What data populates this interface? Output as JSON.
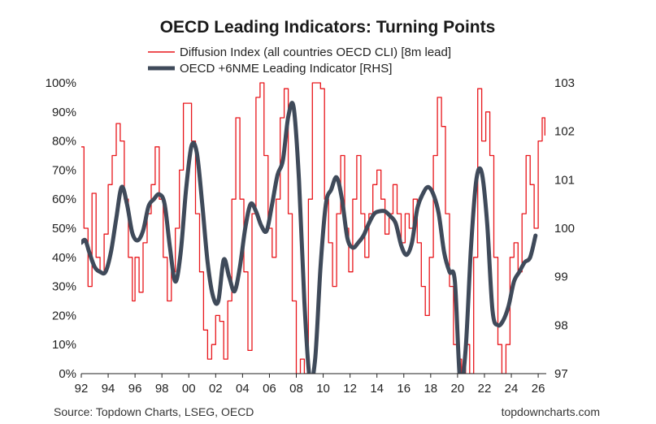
{
  "chart_data": {
    "type": "line",
    "title": "OECD Leading Indicators: Turning Points",
    "xlabel": "",
    "ylabel_left": "",
    "ylabel_right": "",
    "x_ticks": [
      "92",
      "94",
      "96",
      "98",
      "00",
      "02",
      "04",
      "06",
      "08",
      "10",
      "12",
      "14",
      "16",
      "18",
      "20",
      "22",
      "24",
      "26"
    ],
    "y_left_ticks": [
      "0%",
      "10%",
      "20%",
      "30%",
      "40%",
      "50%",
      "60%",
      "70%",
      "80%",
      "90%",
      "100%"
    ],
    "y_right_ticks": [
      "97",
      "98",
      "99",
      "100",
      "101",
      "102",
      "103"
    ],
    "ylim_left": [
      0,
      100
    ],
    "ylim_right": [
      97,
      103
    ],
    "xlim": [
      1992,
      2026.6
    ],
    "series": [
      {
        "name": "Diffusion Index (all countries OECD CLI) [8m lead]",
        "axis": "left",
        "color": "#e8161b",
        "x": [
          1992.0,
          1992.2,
          1992.5,
          1992.8,
          1993.1,
          1993.4,
          1993.7,
          1994.0,
          1994.3,
          1994.6,
          1994.9,
          1995.2,
          1995.5,
          1995.8,
          1996.0,
          1996.3,
          1996.6,
          1996.9,
          1997.2,
          1997.5,
          1997.8,
          1998.1,
          1998.4,
          1998.7,
          1999.0,
          1999.3,
          1999.6,
          1999.9,
          2000.2,
          2000.5,
          2000.8,
          2001.1,
          2001.4,
          2001.7,
          2002.0,
          2002.3,
          2002.6,
          2002.9,
          2003.2,
          2003.5,
          2003.8,
          2004.1,
          2004.4,
          2004.7,
          2005.0,
          2005.3,
          2005.6,
          2005.9,
          2006.2,
          2006.5,
          2006.8,
          2007.1,
          2007.4,
          2007.7,
          2008.0,
          2008.3,
          2008.6,
          2008.9,
          2009.2,
          2009.5,
          2009.8,
          2010.1,
          2010.4,
          2010.7,
          2011.0,
          2011.3,
          2011.6,
          2011.9,
          2012.2,
          2012.5,
          2012.8,
          2013.1,
          2013.4,
          2013.7,
          2014.0,
          2014.3,
          2014.6,
          2014.9,
          2015.2,
          2015.5,
          2015.8,
          2016.1,
          2016.4,
          2016.7,
          2017.0,
          2017.3,
          2017.6,
          2017.9,
          2018.2,
          2018.5,
          2018.8,
          2019.1,
          2019.4,
          2019.7,
          2020.0,
          2020.3,
          2020.6,
          2020.9,
          2021.2,
          2021.5,
          2021.8,
          2022.1,
          2022.4,
          2022.7,
          2023.0,
          2023.3,
          2023.6,
          2023.9,
          2024.2,
          2024.5,
          2024.8,
          2025.1,
          2025.4,
          2025.7,
          2026.0,
          2026.3,
          2026.5
        ],
        "values": [
          78,
          50,
          30,
          62,
          40,
          35,
          48,
          65,
          75,
          86,
          80,
          60,
          40,
          25,
          40,
          28,
          45,
          55,
          65,
          78,
          60,
          40,
          25,
          35,
          50,
          70,
          93,
          93,
          80,
          55,
          35,
          15,
          5,
          10,
          20,
          18,
          5,
          25,
          60,
          88,
          60,
          35,
          8,
          55,
          95,
          100,
          75,
          50,
          40,
          60,
          88,
          98,
          55,
          25,
          0,
          5,
          0,
          60,
          100,
          100,
          98,
          60,
          45,
          30,
          55,
          75,
          50,
          35,
          60,
          75,
          55,
          40,
          55,
          65,
          70,
          60,
          48,
          55,
          65,
          55,
          45,
          55,
          50,
          60,
          45,
          30,
          20,
          40,
          75,
          95,
          85,
          55,
          30,
          10,
          5,
          0,
          10,
          0,
          40,
          98,
          80,
          90,
          75,
          40,
          10,
          0,
          10,
          40,
          45,
          35,
          55,
          75,
          65,
          50,
          80,
          88,
          82
        ]
      },
      {
        "name": "OECD +6NME Leading Indicator [RHS]",
        "axis": "right",
        "color": "#3f4a5a",
        "x": [
          1992.0,
          1992.3,
          1992.6,
          1993.0,
          1993.4,
          1993.8,
          1994.2,
          1994.6,
          1995.0,
          1995.4,
          1995.8,
          1996.2,
          1996.6,
          1997.0,
          1997.4,
          1997.8,
          1998.2,
          1998.6,
          1999.0,
          1999.4,
          1999.8,
          2000.2,
          2000.6,
          2001.0,
          2001.4,
          2001.8,
          2002.2,
          2002.6,
          2003.0,
          2003.4,
          2003.8,
          2004.2,
          2004.6,
          2005.0,
          2005.4,
          2005.8,
          2006.2,
          2006.6,
          2007.0,
          2007.4,
          2007.8,
          2008.2,
          2008.6,
          2009.0,
          2009.4,
          2009.8,
          2010.2,
          2010.6,
          2011.0,
          2011.4,
          2011.8,
          2012.2,
          2012.6,
          2013.0,
          2013.4,
          2013.8,
          2014.2,
          2014.6,
          2015.0,
          2015.4,
          2015.8,
          2016.2,
          2016.6,
          2017.0,
          2017.4,
          2017.8,
          2018.2,
          2018.6,
          2019.0,
          2019.4,
          2019.8,
          2020.2,
          2020.6,
          2021.0,
          2021.4,
          2021.8,
          2022.2,
          2022.6,
          2023.0,
          2023.4,
          2023.8,
          2024.2,
          2024.6,
          2025.0,
          2025.4,
          2025.8
        ],
        "values": [
          99.7,
          99.75,
          99.5,
          99.2,
          99.1,
          99.1,
          99.5,
          100.2,
          100.85,
          100.5,
          99.9,
          99.75,
          99.95,
          100.45,
          100.6,
          100.7,
          100.5,
          99.6,
          98.9,
          99.5,
          100.8,
          101.7,
          101.55,
          100.5,
          99.3,
          98.6,
          98.5,
          99.35,
          99.0,
          98.7,
          99.2,
          100.0,
          100.5,
          100.35,
          100.05,
          99.95,
          100.5,
          101.1,
          101.4,
          102.3,
          102.5,
          101.0,
          98.5,
          96.9,
          97.3,
          99.2,
          100.5,
          100.8,
          101.05,
          100.6,
          99.8,
          99.6,
          99.7,
          99.85,
          100.1,
          100.3,
          100.35,
          100.35,
          100.25,
          100.1,
          99.65,
          99.45,
          99.7,
          100.4,
          100.7,
          100.85,
          100.7,
          100.3,
          99.5,
          99.1,
          98.9,
          96.8,
          97.5,
          99.6,
          101.0,
          101.15,
          100.1,
          98.3,
          98.0,
          98.1,
          98.4,
          98.9,
          99.1,
          99.3,
          99.4,
          99.85
        ]
      }
    ],
    "legend_position": "top-center",
    "grid": false
  },
  "footer": {
    "source": "Source: Topdown Charts, LSEG, OECD",
    "site": "topdowncharts.com"
  }
}
